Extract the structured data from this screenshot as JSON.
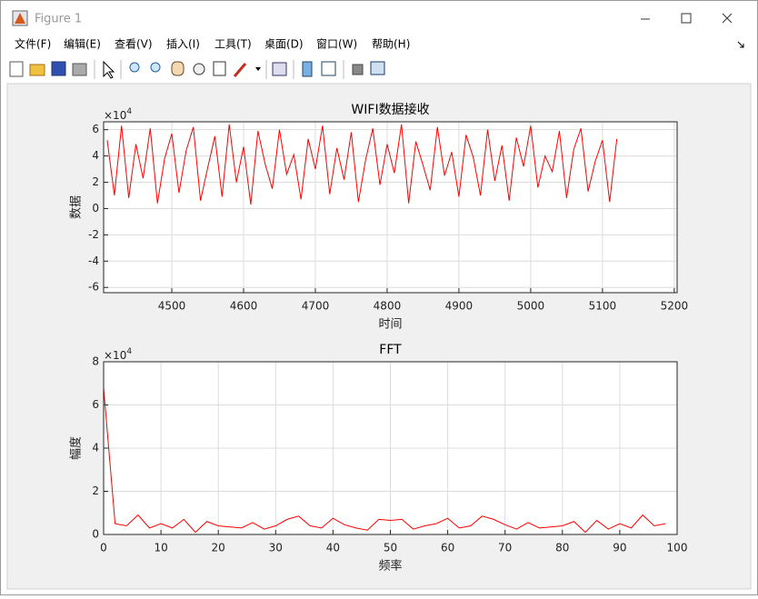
{
  "window": {
    "title": "Figure 1",
    "menu": [
      "文件(F)",
      "编辑(E)",
      "查看(V)",
      "插入(I)",
      "工具(T)",
      "桌面(D)",
      "窗口(W)",
      "帮助(H)"
    ]
  },
  "chart_data": [
    {
      "type": "line",
      "title": "WIFI数据接收",
      "xlabel": "时间",
      "ylabel": "数据",
      "exponent_base": "×10",
      "exponent": "4",
      "color": "#ff0000",
      "grid": true,
      "x": [
        4410,
        4420,
        4430,
        4440,
        4450,
        4460,
        4470,
        4480,
        4490,
        4500,
        4510,
        4520,
        4530,
        4540,
        4550,
        4560,
        4570,
        4580,
        4590,
        4600,
        4610,
        4620,
        4630,
        4640,
        4650,
        4660,
        4670,
        4680,
        4690,
        4700,
        4710,
        4720,
        4730,
        4740,
        4750,
        4760,
        4770,
        4780,
        4790,
        4800,
        4810,
        4820,
        4830,
        4840,
        4850,
        4860,
        4870,
        4880,
        4890,
        4900,
        4910,
        4920,
        4930,
        4940,
        4950,
        4960,
        4970,
        4980,
        4990,
        5000,
        5010,
        5020,
        5030,
        5040,
        5050,
        5060,
        5070,
        5080,
        5090,
        5100,
        5110,
        5120
      ],
      "values": [
        5.2,
        1.0,
        6.3,
        0.8,
        4.9,
        2.3,
        6.1,
        0.4,
        3.8,
        5.7,
        1.2,
        4.4,
        6.2,
        0.6,
        3.1,
        5.5,
        0.9,
        6.4,
        2.0,
        4.7,
        0.3,
        5.9,
        3.4,
        1.5,
        6.0,
        2.6,
        4.1,
        0.7,
        5.3,
        3.0,
        6.3,
        1.1,
        4.6,
        2.2,
        5.8,
        0.5,
        3.7,
        6.1,
        1.8,
        4.9,
        2.7,
        6.4,
        0.4,
        5.1,
        3.3,
        1.4,
        6.2,
        2.5,
        4.3,
        0.9,
        5.6,
        3.9,
        1.0,
        6.0,
        2.1,
        4.8,
        0.6,
        5.4,
        3.2,
        6.3,
        1.6,
        4.0,
        2.8,
        5.9,
        0.8,
        4.5,
        6.1,
        1.3,
        3.6,
        5.2,
        0.5,
        5.3
      ],
      "xlim": [
        4405,
        5204
      ],
      "xticks": [
        4500,
        4600,
        4700,
        4800,
        4900,
        5000,
        5100,
        5200
      ],
      "ylim": [
        -6.4,
        6.6
      ],
      "yticks": [
        -6,
        -4,
        -2,
        0,
        2,
        4,
        6
      ]
    },
    {
      "type": "line",
      "title": "FFT",
      "xlabel": "频率",
      "ylabel": "幅度",
      "exponent_base": "×10",
      "exponent": "4",
      "color": "#ff0000",
      "grid": true,
      "x": [
        0,
        2,
        4,
        6,
        8,
        10,
        12,
        14,
        16,
        18,
        20,
        22,
        24,
        26,
        28,
        30,
        32,
        34,
        36,
        38,
        40,
        42,
        44,
        46,
        48,
        50,
        52,
        54,
        56,
        58,
        60,
        62,
        64,
        66,
        68,
        70,
        72,
        74,
        76,
        78,
        80,
        82,
        84,
        86,
        88,
        90,
        92,
        94,
        96,
        98
      ],
      "values": [
        6.8,
        0.5,
        0.4,
        0.9,
        0.3,
        0.5,
        0.3,
        0.7,
        0.1,
        0.6,
        0.4,
        0.35,
        0.3,
        0.55,
        0.25,
        0.4,
        0.7,
        0.85,
        0.4,
        0.3,
        0.75,
        0.45,
        0.3,
        0.2,
        0.7,
        0.65,
        0.7,
        0.25,
        0.4,
        0.5,
        0.75,
        0.3,
        0.4,
        0.85,
        0.7,
        0.45,
        0.25,
        0.55,
        0.3,
        0.35,
        0.4,
        0.6,
        0.1,
        0.65,
        0.25,
        0.5,
        0.3,
        0.9,
        0.4,
        0.5
      ],
      "xlim": [
        0,
        100
      ],
      "xticks": [
        0,
        10,
        20,
        30,
        40,
        50,
        60,
        70,
        80,
        90,
        100
      ],
      "ylim": [
        0,
        8
      ],
      "yticks": [
        0,
        2,
        4,
        6,
        8
      ]
    }
  ]
}
